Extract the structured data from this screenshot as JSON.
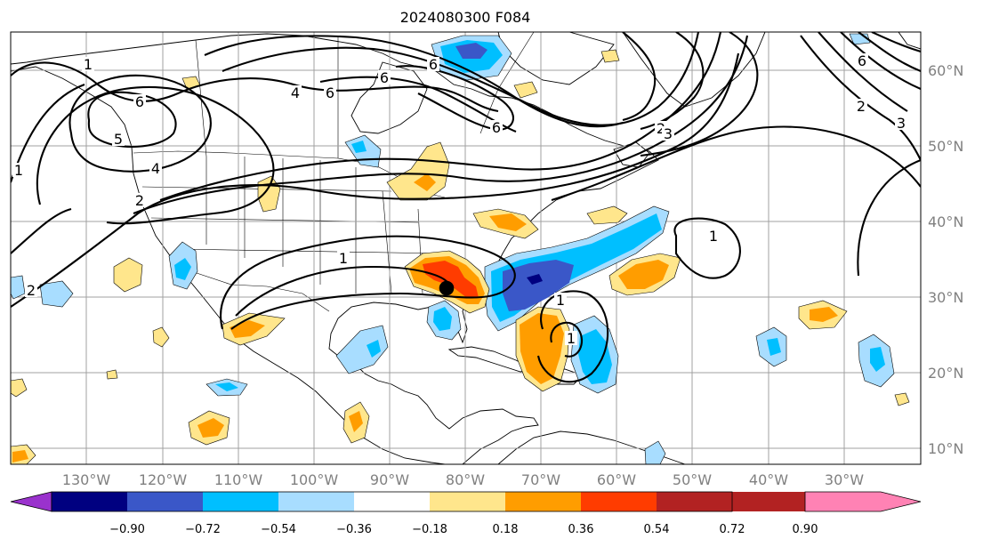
{
  "title": "2024080300 F084",
  "lat_labels": [
    "60°N",
    "50°N",
    "40°N",
    "30°N",
    "20°N",
    "10°N"
  ],
  "lon_labels": [
    "130°W",
    "120°W",
    "110°W",
    "100°W",
    "90°W",
    "80°W",
    "70°W",
    "60°W",
    "50°W",
    "40°W",
    "30°W"
  ],
  "colorbar": {
    "colors": [
      "#9a32cd",
      "#000080",
      "#3a57c8",
      "#00bfff",
      "#a8ddff",
      "#ffffff",
      "#ffe68c",
      "#ff9d00",
      "#ff3c00",
      "#b22222",
      "#ff82b4"
    ],
    "ticks": [
      "−0.90",
      "−0.72",
      "−0.54",
      "−0.36",
      "−0.18",
      "0.18",
      "0.36",
      "0.54",
      "0.72",
      "0.90"
    ]
  },
  "contour_labels": [
    "1",
    "6",
    "6",
    "6",
    "6",
    "6",
    "4",
    "2",
    "1",
    "1",
    "1",
    "2",
    "2",
    "3",
    "6",
    "1",
    "1",
    "2",
    "3",
    "4",
    "5"
  ]
}
